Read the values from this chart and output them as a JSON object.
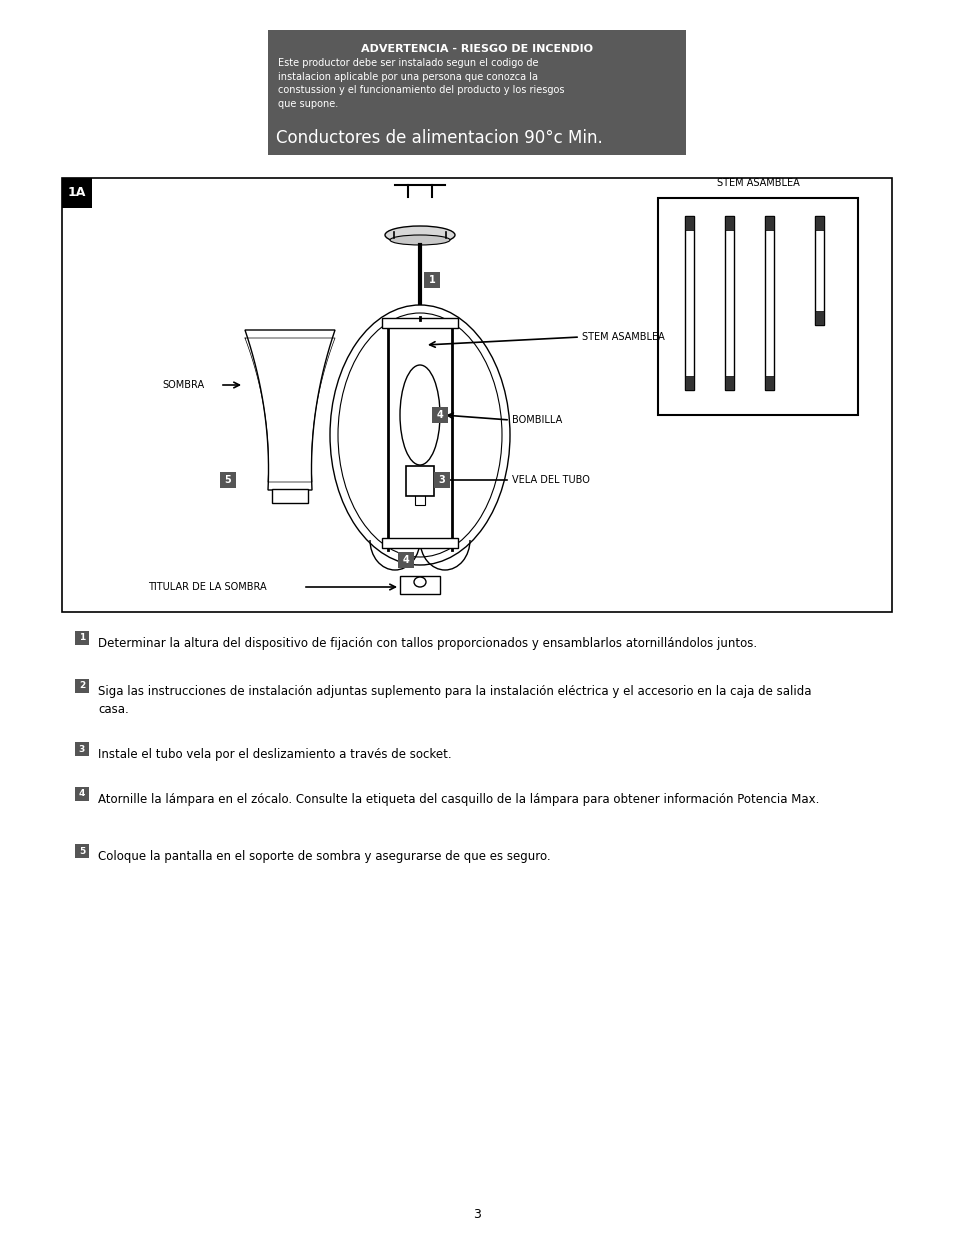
{
  "page_background": "#ffffff",
  "warning_box_color": "#5a5a5a",
  "warning_title": "ADVERTENCIA - RIESGO DE INCENDIO",
  "warning_body": "Este productor debe ser instalado segun el codigo de\ninstalacion aplicable por una persona que conozca la\nconstussion y el funcionamiento del producto y los riesgos\nque supone.",
  "warning_subtitle": "Conductores de alimentacion 90°c Min.",
  "diagram_label": "1A",
  "stem_asamblea_label": "STEM ASAMBLEA",
  "sombra_label": "SOMBRA",
  "bombilla_label": "BOMBILLA",
  "vela_del_tubo_label": "VELA DEL TUBO",
  "titular_label": "TITULAR DE LA SOMBRA",
  "step1": "Determinar la altura del dispositivo de fijación con tallos proporcionados y ensamblarlos atornillándolos juntos.",
  "step2_line1": "Siga las instrucciones de instalación adjuntas suplemento para la instalación eléctrica y el accesorio en la caja de salida",
  "step2_line2": "casa.",
  "step3": "Instale el tubo vela por el deslizamiento a través de socket.",
  "step4": "Atornille la lámpara en el zócalo. Consulte la etiqueta del casquillo de la lámpara para obtener información Potencia Max.",
  "step5": "Coloque la pantalla en el soporte de sombra y asegurarse de que es seguro.",
  "page_number": "3",
  "step_box_color": "#555555"
}
